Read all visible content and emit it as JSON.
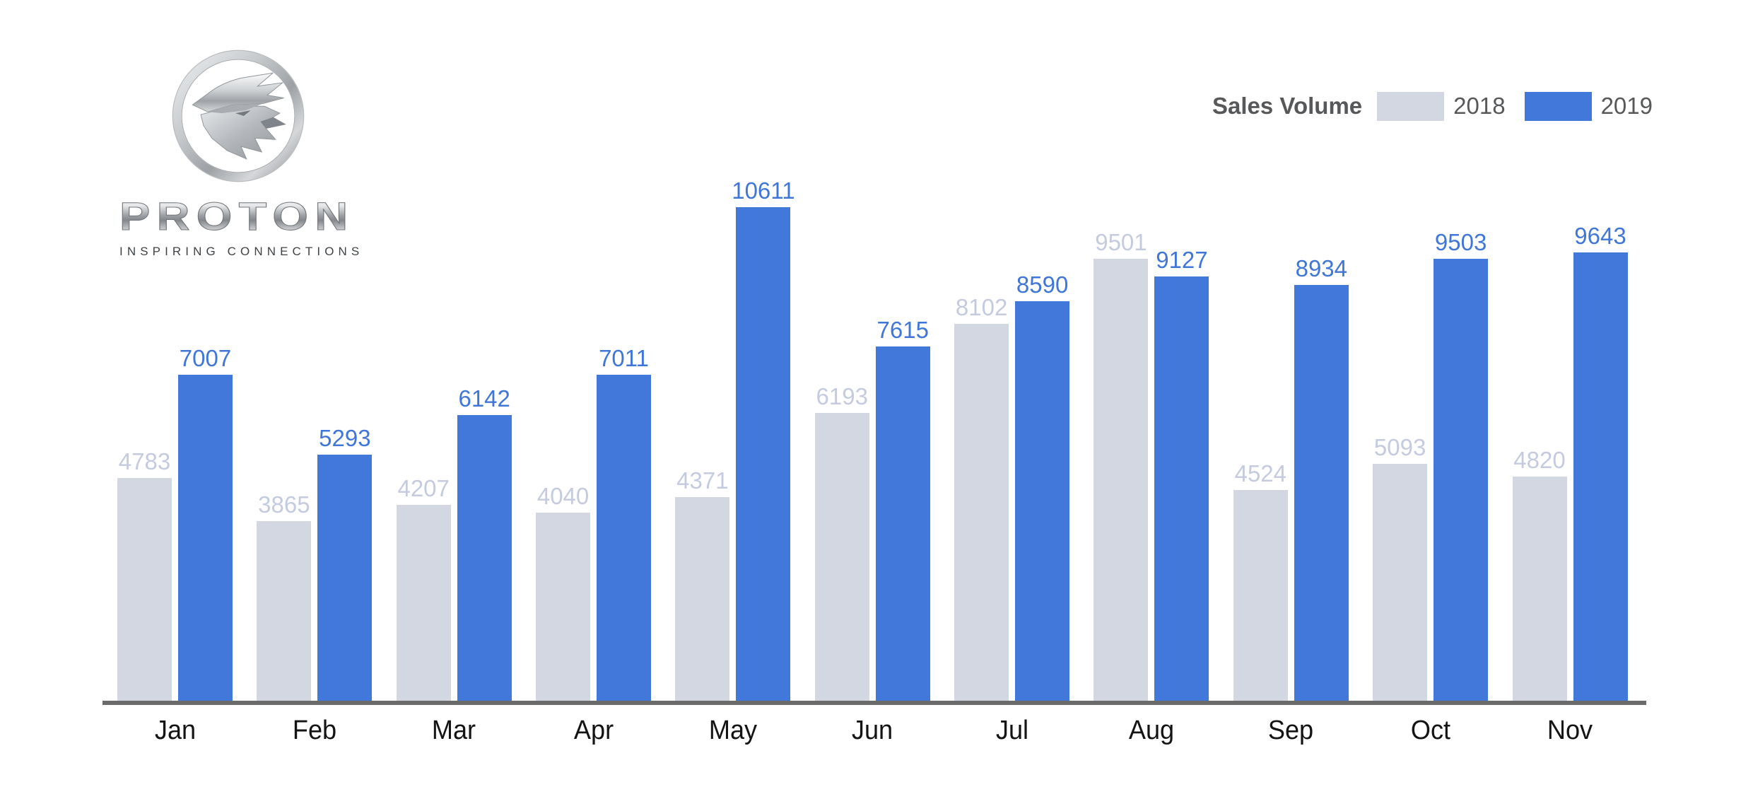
{
  "page": {
    "background": "#ffffff"
  },
  "logo": {
    "brand": "PROTON",
    "tagline": "INSPIRING CONNECTIONS"
  },
  "legend": {
    "title": "Sales Volume",
    "items": [
      {
        "label": "2018",
        "color": "#D2D7E2"
      },
      {
        "label": "2019",
        "color": "#4278DA"
      }
    ]
  },
  "chart_data": {
    "type": "bar",
    "title": "Sales Volume",
    "categories": [
      "Jan",
      "Feb",
      "Mar",
      "Apr",
      "May",
      "Jun",
      "Jul",
      "Aug",
      "Sep",
      "Oct",
      "Nov"
    ],
    "series": [
      {
        "name": "2018",
        "color": "#D2D7E2",
        "label_color": "#C4CBDF",
        "values": [
          4783,
          3865,
          4207,
          4040,
          4371,
          6193,
          8102,
          9501,
          4524,
          5093,
          4820
        ]
      },
      {
        "name": "2019",
        "color": "#4278DA",
        "label_color": "#3F76D8",
        "values": [
          7007,
          5293,
          6142,
          7011,
          10611,
          7615,
          8590,
          9127,
          8934,
          9503,
          9643
        ]
      }
    ],
    "xlabel": "",
    "ylabel": "",
    "ylim": [
      0,
      10611
    ],
    "grid": false,
    "value_labels": true,
    "legend_position": "top-right",
    "axis_color": "#6B6B6B",
    "month_label_color": "#141414"
  }
}
